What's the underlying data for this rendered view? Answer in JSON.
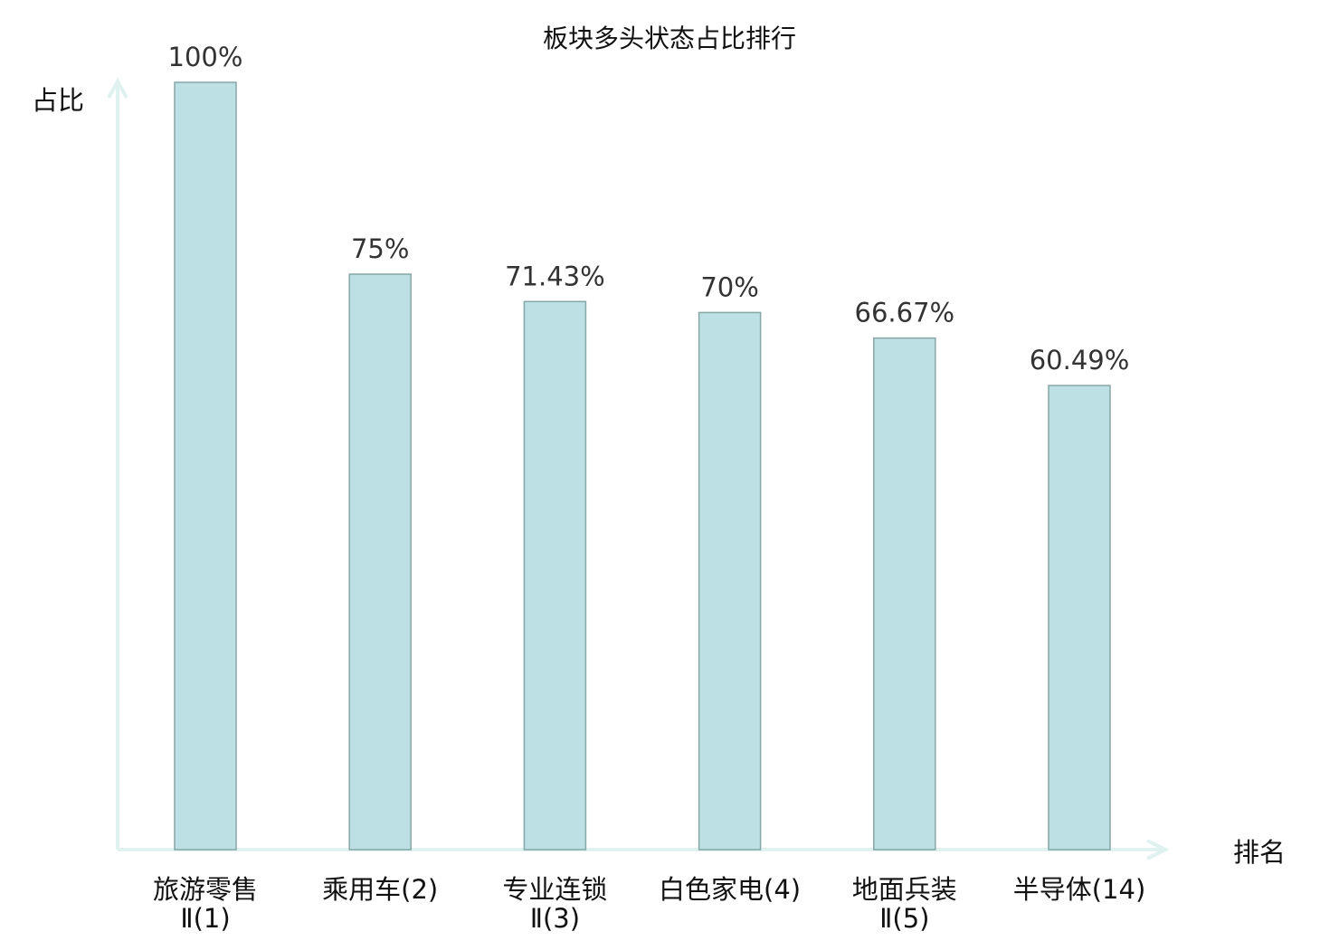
{
  "chart_data": {
    "type": "bar",
    "title": "板块多头状态占比排行",
    "xlabel": "排名",
    "ylabel": "占比",
    "categories": [
      [
        "旅游零售",
        "Ⅱ(1)"
      ],
      [
        "乘用车(2)"
      ],
      [
        "专业连锁",
        "Ⅱ(3)"
      ],
      [
        "白色家电(4)"
      ],
      [
        "地面兵装",
        "Ⅱ(5)"
      ],
      [
        "半导体(14)"
      ]
    ],
    "values": [
      100,
      75,
      71.43,
      70,
      66.67,
      60.49
    ],
    "data_labels": [
      "100%",
      "75%",
      "71.43%",
      "70%",
      "66.67%",
      "60.49%"
    ],
    "highlight_index": 5,
    "ylim": [
      0,
      100
    ],
    "grid": false,
    "colors": {
      "bar_fill": "#bce0e3",
      "bar_stroke": "#86a6a8",
      "axis": "#dff2f0",
      "highlight_label": "#e8181c",
      "label": "#111111"
    }
  }
}
